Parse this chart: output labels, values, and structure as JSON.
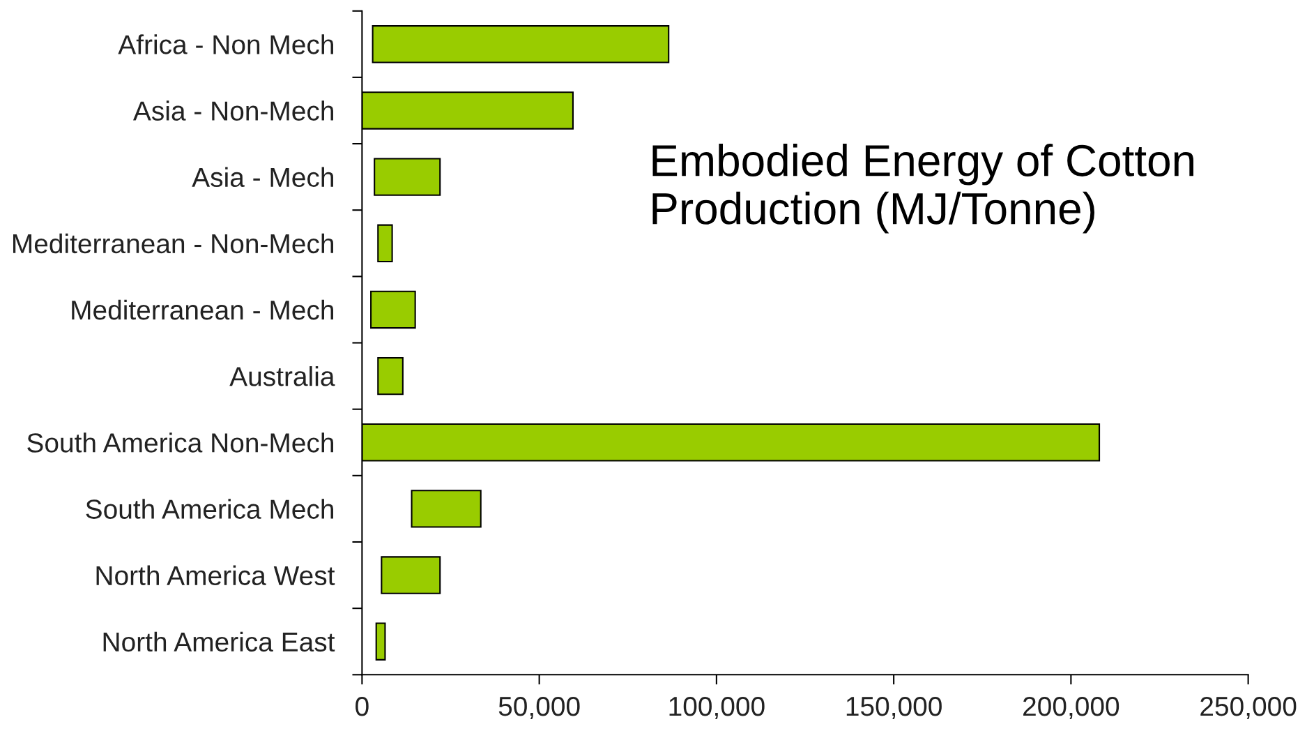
{
  "chart_data": {
    "type": "bar",
    "orientation": "horizontal",
    "title": "Embodied Energy of Cotton Production (MJ/Tonne)",
    "categories": [
      "Africa - Non Mech",
      "Asia - Non-Mech",
      "Asia - Mech",
      "Mediterranean - Non-Mech",
      "Mediterranean - Mech",
      "Australia",
      "South America Non-Mech",
      "South America Mech",
      "North America West",
      "North America East"
    ],
    "base": [
      3000,
      0,
      3500,
      4500,
      2500,
      4500,
      0,
      14000,
      5500,
      4000
    ],
    "values": [
      83500,
      59500,
      18500,
      4000,
      12500,
      7000,
      208000,
      19500,
      16500,
      2500
    ],
    "color": "#99cc00",
    "xlim": [
      0,
      250000
    ],
    "xticks": [
      0,
      {
        "value": 50000,
        "label": "50,000"
      },
      {
        "value": 100000,
        "label": "100,000"
      },
      {
        "value": 150000,
        "label": "150,000"
      },
      {
        "value": 200000,
        "label": "200,000"
      },
      {
        "value": 250000,
        "label": "250,000"
      }
    ],
    "grid": false,
    "legend": false
  }
}
